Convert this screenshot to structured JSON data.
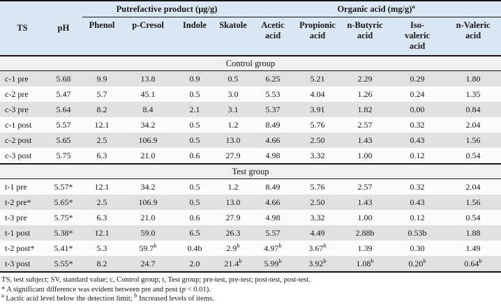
{
  "header": {
    "ts": "TS",
    "ph": "pH",
    "group_putrefactive": "Putrefactive product (μg/g)",
    "group_organic": "Organic acid (mg/g)",
    "group_organic_sup": "a",
    "columns": [
      [
        "Phenol"
      ],
      [
        "p-Cresol"
      ],
      [
        "Indole"
      ],
      [
        "Skatole"
      ],
      [
        "Acetic",
        "acid"
      ],
      [
        "Propionic",
        "acid"
      ],
      [
        "n-Butyric",
        "acid"
      ],
      [
        "Iso-",
        "valeric",
        "acid"
      ],
      [
        "n-Valeric",
        "acid"
      ]
    ]
  },
  "groups": [
    {
      "label": "Control group",
      "rows": [
        {
          "ts": "c-1 pre",
          "ph": "5.68",
          "shaded": true,
          "values": [
            "9.9",
            "13.8",
            "0.9",
            "0.5",
            "6.25",
            "5.21",
            "2.29",
            "0.29",
            "1.80"
          ]
        },
        {
          "ts": "c-2 pre",
          "ph": "5.47",
          "shaded": false,
          "values": [
            "5.7",
            "45.1",
            "0.5",
            "3.0",
            "5.53",
            "4.04",
            "1.26",
            "0.24",
            "1.35"
          ]
        },
        {
          "ts": "c-3 pre",
          "ph": "5.64",
          "shaded": true,
          "values": [
            "8.2",
            "8.4",
            "2.1",
            "3.1",
            "5.37",
            "3.91",
            "1.82",
            "0.00",
            "0.84"
          ]
        },
        {
          "ts": "c-1 post",
          "ph": "5.57",
          "shaded": false,
          "values": [
            "12.1",
            "34.2",
            "0.5",
            "1.2",
            "8.49",
            "5.76",
            "2.57",
            "0.32",
            "2.04"
          ]
        },
        {
          "ts": "c-2 post",
          "ph": "5.65",
          "shaded": true,
          "values": [
            "2.5",
            "106.9",
            "0.5",
            "13.0",
            "4.66",
            "2.50",
            "1.43",
            "0.43",
            "1.56"
          ]
        },
        {
          "ts": "c-3 post",
          "ph": "5.75",
          "shaded": false,
          "values": [
            "6.3",
            "21.0",
            "0.6",
            "27.9",
            "4.98",
            "3.32",
            "1.00",
            "0.12",
            "0.54"
          ]
        }
      ]
    },
    {
      "label": "Test group",
      "rows": [
        {
          "ts": "t-1 pre",
          "ph": "5.57*",
          "shaded": false,
          "values": [
            "12.1",
            "34.2",
            "0.5",
            "1.2",
            "8.49",
            "5.76",
            "2.57",
            "0.32",
            "2.04"
          ]
        },
        {
          "ts": "t-2 pre*",
          "ph": "5.65*",
          "shaded": true,
          "values": [
            "2.5",
            "106.9",
            "0.5",
            "13.0",
            "4.66",
            "2.50",
            "1.43",
            "0.43",
            "1.56"
          ]
        },
        {
          "ts": "t-3 pre",
          "ph": "5.75*",
          "shaded": false,
          "values": [
            "6.3",
            "21.0",
            "0.6",
            "27.9",
            "4.98",
            "3.32",
            "1.00",
            "0.12",
            "0.54"
          ]
        },
        {
          "ts": "t-1 post",
          "ph": "5.38*",
          "shaded": true,
          "values": [
            "12.1",
            "59.0",
            "6.5",
            "26.3",
            "5.57",
            "4.49",
            "2.88b",
            "0.53b",
            "1.88"
          ]
        },
        {
          "ts": "t-2 post*",
          "ph": "5.41*",
          "shaded": false,
          "values": [
            "5.3",
            "59.7^b",
            "0.4b",
            "2.9^b",
            "4.97^b",
            "3.67^b",
            "1.39",
            "0.30",
            "1.49"
          ]
        },
        {
          "ts": "t-3 post",
          "ph": "5.55*",
          "shaded": true,
          "values": [
            "8.2",
            "24.7",
            "2.0",
            "21.4^b",
            "5.99^b",
            "3.92^b",
            "1.08^b",
            "0.20^b",
            "0.64^b"
          ]
        }
      ]
    }
  ],
  "notes": [
    "TS, test subject; SV, standard value; c, Control group; t, Test group; pre-test, pre-test; post-test, post-test.",
    "* A significant difference was evident between pre and post (~p~ < 0.01).",
    "^a Lactic acid level below the detection limit; ^b Increased levels of items."
  ]
}
